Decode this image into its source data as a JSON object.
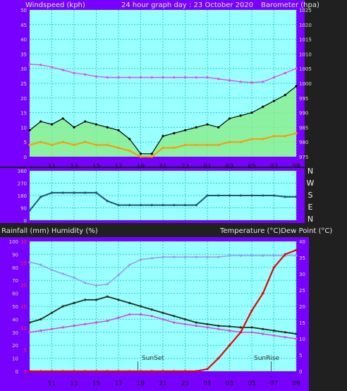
{
  "title": "24 hour graph day : 23 October 2020",
  "colors": {
    "panel": "#7700ff",
    "plot": "#99ffff",
    "grid": "#33cccc",
    "wind_avg": "#ff9900",
    "wind_gust": "#000000",
    "wind_fill": "#88ee88",
    "barometer": "#ee44ee",
    "direction": "#225577",
    "temperature": "#223322",
    "dew_point": "#dd44dd",
    "humidity": "#9999ee",
    "rainfall": "#ee0000"
  },
  "top_chart": {
    "left_label": "Windspeed (kph)",
    "right_label": "Barometer (hpa)",
    "left_ticks": [
      "0",
      "5",
      "10",
      "15",
      "20",
      "25",
      "30",
      "35",
      "40",
      "45",
      "50"
    ],
    "right_ticks": [
      "975",
      "980",
      "985",
      "990",
      "995",
      "1000",
      "1005",
      "1010",
      "1015",
      "1020",
      "1025"
    ],
    "x_ticks": [
      "11",
      "13",
      "15",
      "17",
      "19",
      "21",
      "23",
      "01",
      "03",
      "05",
      "07",
      "09"
    ]
  },
  "dir_chart": {
    "y_ticks": [
      "0",
      "90",
      "180",
      "270",
      "360"
    ],
    "compass": [
      "N",
      "W",
      "S",
      "E",
      "N"
    ]
  },
  "bottom_chart": {
    "left_label": "Rainfall (mm)  Humidity (%)",
    "right_label": "Temperature (°C)Dew Point (°C)",
    "humidity_ticks": [
      "0",
      "10",
      "20",
      "30",
      "40",
      "50",
      "60",
      "70",
      "80",
      "90",
      "100"
    ],
    "rain_ticks": [
      "0",
      "5",
      "10",
      "15",
      "20",
      "25",
      "30"
    ],
    "temp_ticks": [
      "0",
      "5",
      "10",
      "15",
      "20",
      "25",
      "30",
      "35",
      "40"
    ],
    "x_ticks": [
      "11",
      "13",
      "15",
      "17",
      "19",
      "21",
      "23",
      "01",
      "03",
      "05",
      "07",
      "09"
    ],
    "annotations": {
      "sunset": "SunSet",
      "sunrise": "SunRise"
    }
  },
  "chart_data": [
    {
      "type": "line",
      "x": [
        "09",
        "10",
        "11",
        "12",
        "13",
        "14",
        "15",
        "16",
        "17",
        "18",
        "19",
        "20",
        "21",
        "22",
        "23",
        "00",
        "01",
        "02",
        "03",
        "04",
        "05",
        "06",
        "07",
        "08",
        "09"
      ],
      "ylim_left": [
        0,
        50
      ],
      "ylim_right": [
        975,
        1025
      ],
      "grid": true,
      "series": [
        {
          "name": "Windspeed (kph)",
          "axis": "left",
          "role": "gust",
          "values": [
            9,
            12,
            11,
            13,
            10,
            12,
            11,
            10,
            9,
            6,
            1,
            1,
            7,
            8,
            9,
            10,
            11,
            10,
            13,
            14,
            15,
            17,
            19,
            21,
            24
          ]
        },
        {
          "name": "Windspeed (kph)",
          "axis": "left",
          "role": "average",
          "values": [
            4,
            5,
            4,
            5,
            4,
            5,
            4,
            4,
            3,
            2,
            0,
            0,
            3,
            3,
            4,
            4,
            4,
            4,
            5,
            5,
            6,
            6,
            7,
            7,
            8
          ]
        },
        {
          "name": "Barometer (hpa)",
          "axis": "right",
          "values": [
            1006.5,
            1006.3,
            1005.5,
            1004.5,
            1003.5,
            1003,
            1002.3,
            1002,
            1002,
            1002,
            1002,
            1002,
            1002,
            1002,
            1002,
            1002,
            1002,
            1001.5,
            1001,
            1000.5,
            1000.3,
            1000.5,
            1002,
            1003.5,
            1005
          ]
        }
      ]
    },
    {
      "type": "line",
      "x": [
        "09",
        "10",
        "11",
        "12",
        "13",
        "14",
        "15",
        "16",
        "17",
        "18",
        "19",
        "20",
        "21",
        "22",
        "23",
        "00",
        "01",
        "02",
        "03",
        "04",
        "05",
        "06",
        "07",
        "08",
        "09"
      ],
      "ylim": [
        0,
        360
      ],
      "grid": true,
      "series": [
        {
          "name": "Wind direction",
          "values": [
            70,
            170,
            200,
            200,
            200,
            200,
            200,
            140,
            110,
            110,
            110,
            110,
            110,
            110,
            110,
            110,
            180,
            180,
            180,
            180,
            180,
            180,
            180,
            170,
            170
          ]
        }
      ]
    },
    {
      "type": "line",
      "x": [
        "09",
        "10",
        "11",
        "12",
        "13",
        "14",
        "15",
        "16",
        "17",
        "18",
        "19",
        "20",
        "21",
        "22",
        "23",
        "00",
        "01",
        "02",
        "03",
        "04",
        "05",
        "06",
        "07",
        "08",
        "09"
      ],
      "ylim_humidity": [
        0,
        100
      ],
      "ylim_rain": [
        0,
        30
      ],
      "ylim_temp": [
        0,
        40
      ],
      "grid": true,
      "series": [
        {
          "name": "Humidity (%)",
          "axis": "humidity",
          "values": [
            84,
            82,
            78,
            75,
            72,
            68,
            66,
            67,
            74,
            82,
            86,
            87,
            88,
            88,
            88,
            88,
            88,
            88,
            89,
            89,
            89,
            89,
            89,
            89,
            89
          ]
        },
        {
          "name": "Rainfall (mm)",
          "axis": "rain",
          "values": [
            0,
            0,
            0,
            0,
            0,
            0,
            0,
            0,
            0,
            0,
            0,
            0,
            0,
            0,
            0,
            0,
            0.5,
            3,
            6,
            9,
            14,
            18,
            24,
            27,
            28
          ]
        },
        {
          "name": "Temperature (°C)",
          "axis": "temp",
          "values": [
            15,
            16,
            18,
            20,
            21,
            22,
            22,
            23,
            22,
            21,
            20,
            19,
            18,
            17,
            16,
            15,
            14.5,
            14,
            13.8,
            13.5,
            13.5,
            13,
            12.5,
            12,
            11.5
          ]
        },
        {
          "name": "Dew Point (°C)",
          "axis": "temp",
          "values": [
            12,
            12.5,
            13,
            13.5,
            14,
            14.5,
            15,
            15.5,
            16.5,
            17.5,
            17.5,
            17,
            16,
            15,
            14.5,
            14,
            13.5,
            13,
            12.5,
            12,
            12,
            11.5,
            11,
            10.5,
            10
          ]
        }
      ]
    }
  ]
}
